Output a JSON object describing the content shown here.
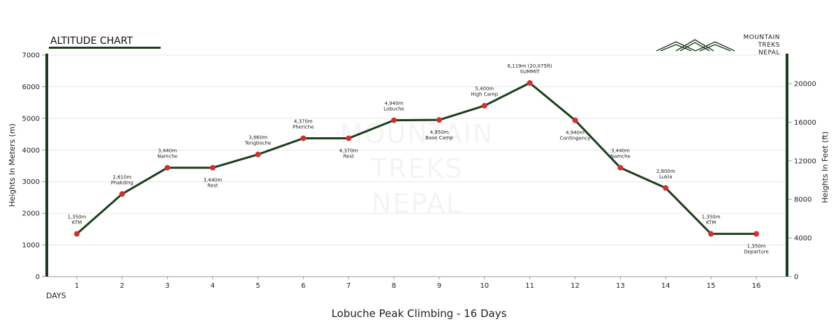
{
  "header": {
    "title": "ALTITUDE CHART",
    "logo": {
      "lines": [
        "MOUNTAIN",
        "TREKS",
        "NEPAL"
      ],
      "icon": "mountains-icon"
    },
    "watermark_lines": [
      "MOUNTAIN",
      "TREKS",
      "NEPAL"
    ]
  },
  "colors": {
    "line": "#1c3d1c",
    "marker": "#d32f2f",
    "axis_bar": "#1c3d1c",
    "grid": "#e6e6e6"
  },
  "chart_data": {
    "type": "line",
    "xlabel": "DAYS",
    "ylabel": "Heights In Meters (m)",
    "y2label": "Heights In Feet (ft)",
    "subtitle": "Lobuche Peak Climbing - 16 Days",
    "x": [
      1,
      2,
      3,
      4,
      5,
      6,
      7,
      8,
      9,
      10,
      11,
      12,
      13,
      14,
      15,
      16
    ],
    "values": [
      1350,
      2610,
      3440,
      3440,
      3860,
      4370,
      4370,
      4940,
      4950,
      5400,
      6119,
      4940,
      3440,
      2800,
      1350,
      1350
    ],
    "point_labels": [
      {
        "value": "1,350m",
        "name": "KTM",
        "pos": "above"
      },
      {
        "value": "2,610m",
        "name": "Phakding",
        "pos": "above"
      },
      {
        "value": "3,440m",
        "name": "Namche",
        "pos": "above"
      },
      {
        "value": "3,440m",
        "name": "Rest",
        "pos": "below"
      },
      {
        "value": "3,860m",
        "name": "Tengboche",
        "pos": "above"
      },
      {
        "value": "4,370m",
        "name": "Pheriche",
        "pos": "above"
      },
      {
        "value": "4,370m",
        "name": "Rest",
        "pos": "below"
      },
      {
        "value": "4,940m",
        "name": "Lobuche",
        "pos": "above"
      },
      {
        "value": "4,950m",
        "name": "Base Camp",
        "pos": "below"
      },
      {
        "value": "5,400m",
        "name": "High Camp",
        "pos": "above"
      },
      {
        "value": "6,119m (20,075ft)",
        "name": "SUMMIT",
        "pos": "above"
      },
      {
        "value": "4,940m",
        "name": "Contingency",
        "pos": "below"
      },
      {
        "value": "3,440m",
        "name": "Namche",
        "pos": "above"
      },
      {
        "value": "2,800m",
        "name": "Lukla",
        "pos": "above"
      },
      {
        "value": "1,350m",
        "name": "KTM",
        "pos": "above"
      },
      {
        "value": "1,350m",
        "name": "Departure",
        "pos": "below"
      }
    ],
    "ylim": [
      0,
      7000
    ],
    "yticks": [
      0,
      1000,
      2000,
      3000,
      4000,
      5000,
      6000,
      7000
    ],
    "y2lim_ft": [
      0,
      22966
    ],
    "y2ticks": [
      0,
      4000,
      8000,
      12000,
      16000,
      20000
    ],
    "grid": true,
    "legend": "none"
  }
}
